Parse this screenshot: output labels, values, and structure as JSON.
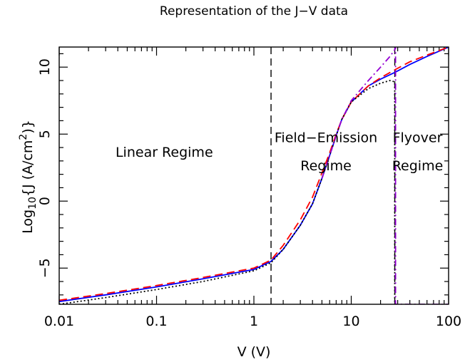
{
  "chart_data": {
    "type": "line",
    "title": "Representation of the J−V data",
    "xlabel": "V (V)",
    "ylabel": {
      "prefix": "Log",
      "sub": "10",
      "mid": "{J (A/cm",
      "sup": "2",
      "suffix": ")}"
    },
    "xscale": "log",
    "xlim": [
      0.01,
      100
    ],
    "ylim": [
      -7.7,
      11.5
    ],
    "x_ticks": [
      0.01,
      0.1,
      1,
      10,
      100
    ],
    "x_tick_labels": [
      "0.01",
      "0.1",
      "1",
      "10",
      "100"
    ],
    "y_ticks": [
      -5,
      0,
      5,
      10
    ],
    "y_tick_labels": [
      "−5",
      "0",
      "5",
      "10"
    ],
    "grid": false,
    "legend": "none",
    "vlines": [
      {
        "x": 1.5,
        "style": "dashed",
        "color": "#000000"
      },
      {
        "x": 28,
        "style": "dashed",
        "color": "#000000"
      }
    ],
    "annotations": [
      {
        "text": "Linear Regime",
        "x": 0.12,
        "y": 3.3
      },
      {
        "text": "Field−Emission",
        "x": 5.5,
        "y": 4.4
      },
      {
        "text": "Regime",
        "x": 5.5,
        "y": 2.3
      },
      {
        "text": "Flyover",
        "x": 48,
        "y": 4.4
      },
      {
        "text": "Regime",
        "x": 48,
        "y": 2.3
      }
    ],
    "series": [
      {
        "style": "solid",
        "color": "#0000ff",
        "x": [
          0.01,
          0.03,
          0.1,
          0.3,
          1,
          1.5,
          2,
          3,
          4,
          5,
          6,
          7,
          8,
          10,
          15,
          20,
          28,
          40,
          60,
          100
        ],
        "y": [
          -7.5,
          -7.0,
          -6.4,
          -5.8,
          -5.1,
          -4.5,
          -3.6,
          -1.8,
          -0.2,
          1.7,
          3.4,
          4.9,
          6.1,
          7.4,
          8.6,
          9.1,
          9.6,
          10.2,
          10.8,
          11.5
        ]
      },
      {
        "style": "dashed",
        "color": "#ff0000",
        "x": [
          0.01,
          0.03,
          0.1,
          0.3,
          1,
          1.5,
          2,
          3,
          4,
          5,
          6,
          7,
          8,
          10,
          15,
          20,
          28,
          40,
          60,
          100
        ],
        "y": [
          -7.4,
          -6.9,
          -6.3,
          -5.7,
          -5.0,
          -4.4,
          -3.3,
          -1.4,
          0.3,
          2.1,
          3.6,
          5.0,
          6.1,
          7.4,
          8.6,
          9.2,
          9.8,
          10.4,
          10.9,
          11.5
        ]
      },
      {
        "style": "dotted",
        "color": "#000000",
        "x": [
          0.01,
          0.03,
          0.1,
          0.3,
          1,
          1.5,
          2,
          3,
          4,
          5,
          6,
          7,
          8,
          10,
          15,
          20,
          25,
          28,
          28,
          28.5
        ],
        "y": [
          -7.7,
          -7.2,
          -6.6,
          -6.0,
          -5.2,
          -4.6,
          -3.6,
          -1.8,
          -0.2,
          1.7,
          3.4,
          4.9,
          6.1,
          7.4,
          8.4,
          8.8,
          9.0,
          8.9,
          -7.7,
          -7.7
        ]
      },
      {
        "style": "dashdot",
        "color": "#9400d3",
        "x": [
          5,
          6,
          7,
          8,
          10,
          15,
          20,
          25,
          28,
          28.5,
          28.5,
          100
        ],
        "y": [
          1.7,
          3.4,
          4.9,
          6.1,
          7.5,
          9.0,
          10.0,
          10.8,
          11.3,
          11.5,
          -7.7,
          -7.7
        ]
      }
    ]
  }
}
